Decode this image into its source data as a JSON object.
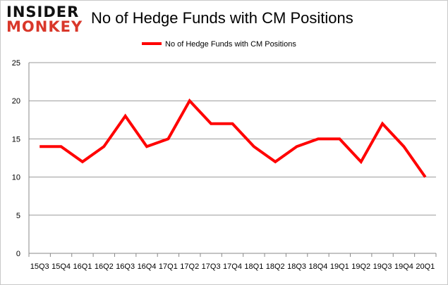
{
  "logo": {
    "line1": "INSIDER",
    "line2": "MONKEY"
  },
  "chart_data": {
    "type": "line",
    "title": "No of Hedge Funds with CM Positions",
    "categories": [
      "15Q3",
      "15Q4",
      "16Q1",
      "16Q2",
      "16Q3",
      "16Q4",
      "17Q1",
      "17Q2",
      "17Q3",
      "17Q4",
      "18Q1",
      "18Q2",
      "18Q3",
      "18Q4",
      "19Q1",
      "19Q2",
      "19Q3",
      "19Q4",
      "20Q1"
    ],
    "series": [
      {
        "name": "No of Hedge Funds with CM Positions",
        "values": [
          14,
          14,
          12,
          14,
          18,
          14,
          15,
          20,
          17,
          17,
          14,
          12,
          14,
          15,
          15,
          12,
          17,
          14,
          10
        ],
        "color": "#ff0000"
      }
    ],
    "ylim": [
      0,
      25
    ],
    "yticks": [
      0,
      5,
      10,
      15,
      20,
      25
    ],
    "grid": true,
    "legend": "top"
  }
}
